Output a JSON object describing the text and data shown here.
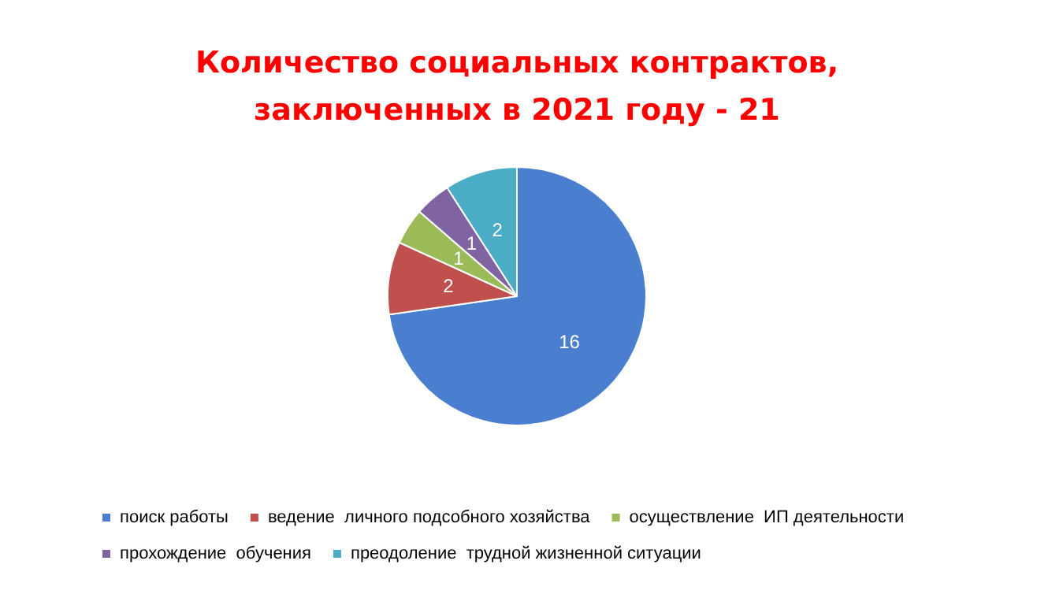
{
  "chart_data": {
    "type": "pie",
    "title": "Количество социальных контрактов,\nзаключенных в 2021 году - 21",
    "categories": [
      "поиск работы",
      "ведение  личного подсобного хозяйства",
      "осуществление  ИП деятельности",
      "прохождение  обучения",
      "преодоление  трудной жизненной ситуации"
    ],
    "values": [
      16,
      2,
      1,
      1,
      2
    ],
    "colors": [
      "#4a7fcf",
      "#c0504d",
      "#9bbb59",
      "#8064a2",
      "#4bacc6"
    ],
    "data_labels": true,
    "legend": "bottom"
  }
}
